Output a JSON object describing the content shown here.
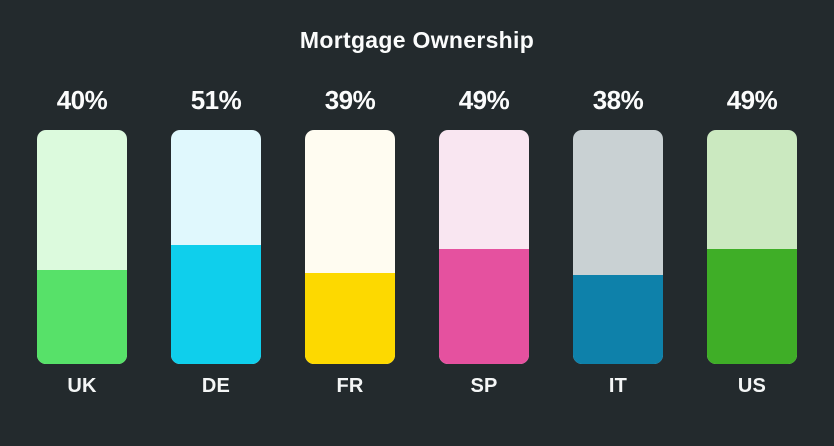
{
  "colors": {
    "background": "#232a2d",
    "text": "#fbfcfc"
  },
  "chart_data": {
    "type": "bar",
    "title": "Mortgage Ownership",
    "categories": [
      "UK",
      "DE",
      "FR",
      "SP",
      "IT",
      "US"
    ],
    "values": [
      40,
      51,
      39,
      49,
      38,
      49
    ],
    "value_labels": [
      "40%",
      "51%",
      "39%",
      "49%",
      "38%",
      "49%"
    ],
    "ylim": [
      0,
      100
    ],
    "grid": false,
    "legend": "none",
    "bars": [
      {
        "code": "UK",
        "label": "40%",
        "value": 40,
        "fill": "#57e169",
        "tint": "#dcfadd"
      },
      {
        "code": "DE",
        "label": "51%",
        "value": 51,
        "fill": "#0fcfec",
        "tint": "#e0f8fd"
      },
      {
        "code": "FR",
        "label": "39%",
        "value": 39,
        "fill": "#fdd900",
        "tint": "#fffcf1"
      },
      {
        "code": "SP",
        "label": "49%",
        "value": 49,
        "fill": "#e5519f",
        "tint": "#f9e6f1"
      },
      {
        "code": "IT",
        "label": "38%",
        "value": 38,
        "fill": "#0e81aa",
        "tint": "#c9d1d3"
      },
      {
        "code": "US",
        "label": "49%",
        "value": 49,
        "fill": "#3fae27",
        "tint": "#cbe9c0"
      }
    ]
  }
}
